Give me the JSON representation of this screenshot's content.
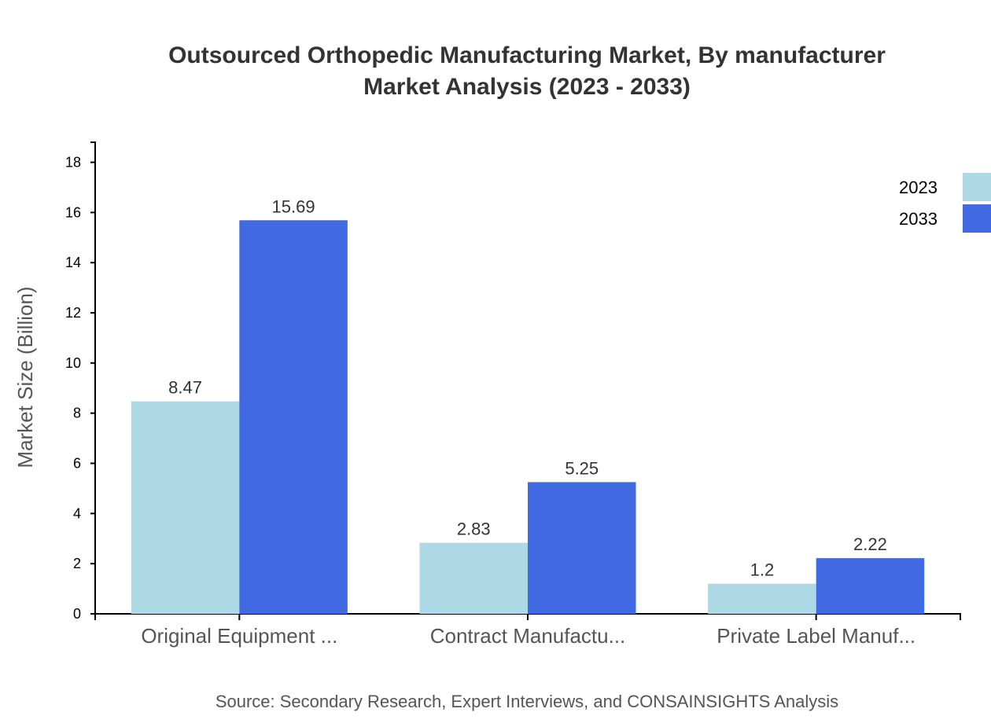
{
  "chart_data": {
    "type": "bar",
    "title": [
      "Outsourced Orthopedic Manufacturing Market, By manufacturer",
      "Market Analysis (2023 - 2033)"
    ],
    "ylabel": "Market Size (Billion)",
    "xlabel": "",
    "categories": [
      "Original Equipment ...",
      "Contract Manufactu...",
      "Private Label Manuf..."
    ],
    "series": [
      {
        "name": "2023",
        "values": [
          8.47,
          2.83,
          1.2
        ],
        "color": "#add8e6"
      },
      {
        "name": "2033",
        "values": [
          15.69,
          5.25,
          2.22
        ],
        "color": "#4169e1"
      }
    ],
    "ylim": [
      0,
      18.8
    ],
    "yticks": [
      0,
      2,
      4,
      6,
      8,
      10,
      12,
      14,
      16,
      18
    ],
    "grid": false,
    "legend": "top-right",
    "source": "Source: Secondary Research, Expert Interviews, and CONSAINSIGHTS Analysis"
  }
}
